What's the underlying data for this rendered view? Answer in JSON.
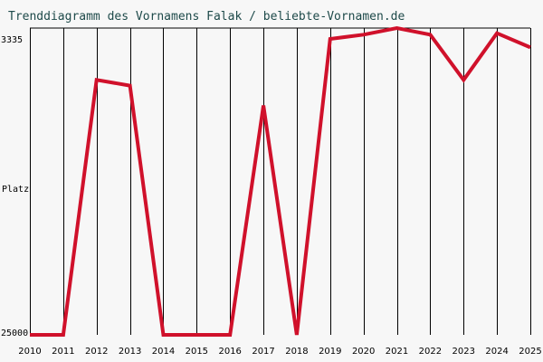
{
  "chart_data": {
    "type": "line",
    "title": "Trenddiagramm des Vornamens Falak / beliebte-Vornamen.de",
    "ylabel": "Platz",
    "y_top_label": "3335",
    "y_bottom_label": "25000",
    "ylim": [
      3335,
      25000
    ],
    "y_inverted": true,
    "categories": [
      "2010",
      "2011",
      "2012",
      "2013",
      "2014",
      "2015",
      "2016",
      "2017",
      "2018",
      "2019",
      "2020",
      "2021",
      "2022",
      "2023",
      "2024",
      "2025"
    ],
    "series": [
      {
        "values": [
          25000,
          25000,
          7000,
          7400,
          25000,
          25000,
          25000,
          8800,
          25000,
          4100,
          3800,
          3335,
          3800,
          7000,
          3700,
          4700
        ]
      }
    ],
    "colors": {
      "line": "#d0112b",
      "grid": "#000000",
      "background": "#f7f7f7",
      "title": "#1e4a4a"
    },
    "grid": true
  }
}
